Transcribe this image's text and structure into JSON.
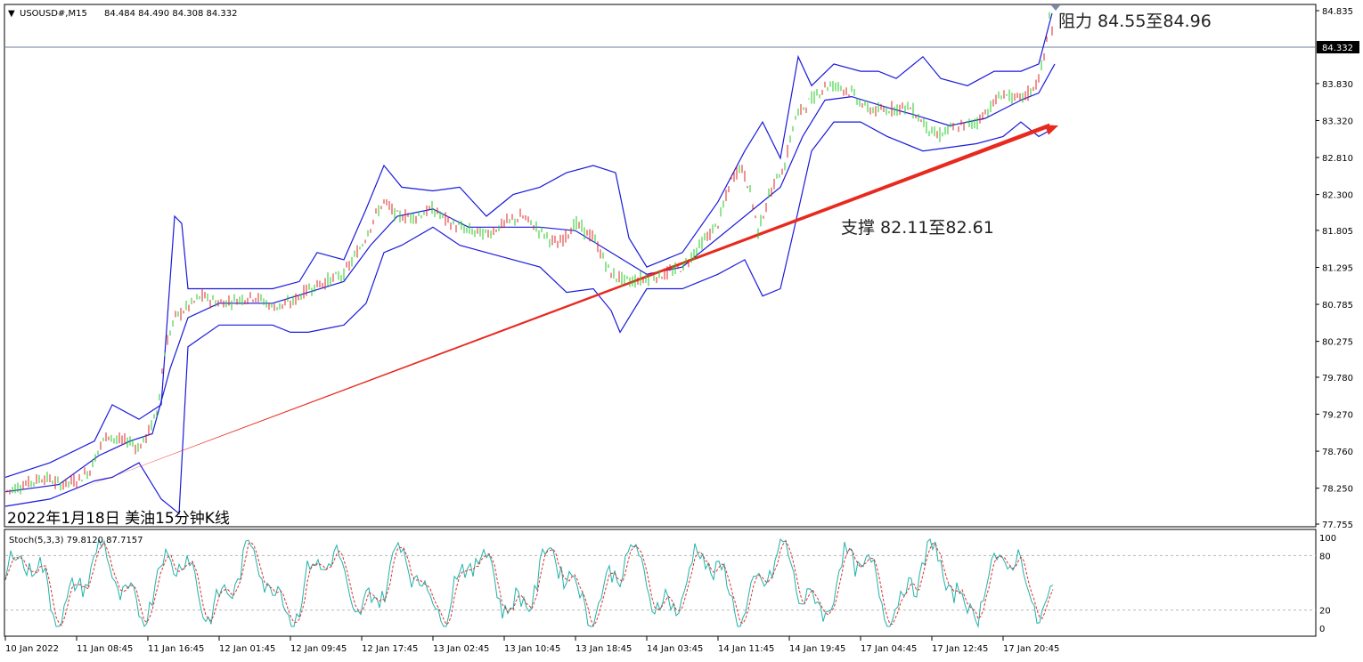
{
  "chart_data": {
    "type": "candlestick",
    "symbol_header": "USOUSD#,M15",
    "ohlc_readout": "84.484 84.490 84.308 84.332",
    "last_price_label": "84.332",
    "caption": "2022年1月18日 美油15分钟K线",
    "resistance_label": "阻力 84.55至84.96",
    "support_label": "支撑 82.11至82.61",
    "price_ticks": [
      "84.835",
      "84.332",
      "83.830",
      "83.320",
      "82.810",
      "82.300",
      "81.805",
      "81.295",
      "80.785",
      "80.275",
      "79.780",
      "79.270",
      "78.760",
      "78.250",
      "77.755"
    ],
    "x_ticks": [
      "10 Jan 2022",
      "11 Jan 08:45",
      "11 Jan 16:45",
      "12 Jan 01:45",
      "12 Jan 09:45",
      "12 Jan 17:45",
      "13 Jan 02:45",
      "13 Jan 10:45",
      "13 Jan 18:45",
      "14 Jan 03:45",
      "14 Jan 11:45",
      "14 Jan 19:45",
      "17 Jan 04:45",
      "17 Jan 12:45",
      "17 Jan 20:45"
    ],
    "ylim": [
      77.755,
      84.835
    ],
    "price_path": [
      [
        0,
        78.2
      ],
      [
        20,
        78.3
      ],
      [
        45,
        78.4
      ],
      [
        60,
        78.3
      ],
      [
        80,
        78.35
      ],
      [
        95,
        78.5
      ],
      [
        105,
        78.8
      ],
      [
        115,
        79.0
      ],
      [
        125,
        78.9
      ],
      [
        140,
        78.9
      ],
      [
        150,
        78.8
      ],
      [
        160,
        79.0
      ],
      [
        170,
        79.3
      ],
      [
        180,
        80.2
      ],
      [
        190,
        80.6
      ],
      [
        205,
        80.75
      ],
      [
        220,
        80.9
      ],
      [
        240,
        80.8
      ],
      [
        260,
        80.85
      ],
      [
        280,
        80.9
      ],
      [
        300,
        80.75
      ],
      [
        320,
        80.8
      ],
      [
        340,
        81.0
      ],
      [
        360,
        81.1
      ],
      [
        380,
        81.2
      ],
      [
        400,
        81.6
      ],
      [
        415,
        82.0
      ],
      [
        425,
        82.2
      ],
      [
        440,
        82.0
      ],
      [
        460,
        82.0
      ],
      [
        480,
        82.1
      ],
      [
        500,
        81.9
      ],
      [
        520,
        81.8
      ],
      [
        540,
        81.75
      ],
      [
        560,
        81.9
      ],
      [
        580,
        82.0
      ],
      [
        600,
        81.8
      ],
      [
        620,
        81.6
      ],
      [
        640,
        81.9
      ],
      [
        660,
        81.7
      ],
      [
        680,
        81.2
      ],
      [
        700,
        81.1
      ],
      [
        720,
        81.15
      ],
      [
        740,
        81.2
      ],
      [
        760,
        81.3
      ],
      [
        780,
        81.6
      ],
      [
        800,
        81.9
      ],
      [
        815,
        82.5
      ],
      [
        825,
        82.7
      ],
      [
        835,
        82.4
      ],
      [
        845,
        81.8
      ],
      [
        855,
        82.2
      ],
      [
        865,
        82.5
      ],
      [
        875,
        82.7
      ],
      [
        885,
        83.3
      ],
      [
        895,
        83.5
      ],
      [
        905,
        83.6
      ],
      [
        920,
        83.8
      ],
      [
        935,
        83.8
      ],
      [
        950,
        83.7
      ],
      [
        965,
        83.5
      ],
      [
        980,
        83.45
      ],
      [
        1000,
        83.5
      ],
      [
        1015,
        83.5
      ],
      [
        1030,
        83.3
      ],
      [
        1045,
        83.1
      ],
      [
        1060,
        83.2
      ],
      [
        1075,
        83.25
      ],
      [
        1090,
        83.3
      ],
      [
        1105,
        83.5
      ],
      [
        1120,
        83.7
      ],
      [
        1135,
        83.6
      ],
      [
        1150,
        83.7
      ],
      [
        1160,
        83.9
      ],
      [
        1168,
        84.3
      ],
      [
        1172,
        84.8
      ],
      [
        1176,
        84.4
      ]
    ],
    "bollinger_middle": [
      [
        0,
        78.2
      ],
      [
        60,
        78.3
      ],
      [
        105,
        78.7
      ],
      [
        140,
        78.9
      ],
      [
        165,
        79.0
      ],
      [
        185,
        79.9
      ],
      [
        205,
        80.6
      ],
      [
        240,
        80.8
      ],
      [
        300,
        80.8
      ],
      [
        340,
        80.95
      ],
      [
        380,
        81.1
      ],
      [
        410,
        81.6
      ],
      [
        440,
        82.0
      ],
      [
        480,
        82.1
      ],
      [
        520,
        81.85
      ],
      [
        560,
        81.85
      ],
      [
        600,
        81.85
      ],
      [
        640,
        81.8
      ],
      [
        680,
        81.5
      ],
      [
        720,
        81.2
      ],
      [
        760,
        81.3
      ],
      [
        800,
        81.7
      ],
      [
        840,
        82.1
      ],
      [
        870,
        82.4
      ],
      [
        895,
        83.1
      ],
      [
        920,
        83.6
      ],
      [
        950,
        83.65
      ],
      [
        990,
        83.5
      ],
      [
        1020,
        83.4
      ],
      [
        1060,
        83.25
      ],
      [
        1100,
        83.35
      ],
      [
        1140,
        83.6
      ],
      [
        1160,
        83.7
      ],
      [
        1178,
        84.1
      ]
    ],
    "bollinger_upper": [
      [
        0,
        78.4
      ],
      [
        50,
        78.6
      ],
      [
        100,
        78.9
      ],
      [
        120,
        79.4
      ],
      [
        150,
        79.2
      ],
      [
        175,
        79.4
      ],
      [
        190,
        82.0
      ],
      [
        198,
        81.9
      ],
      [
        205,
        81.0
      ],
      [
        240,
        81.0
      ],
      [
        300,
        81.0
      ],
      [
        330,
        81.1
      ],
      [
        350,
        81.5
      ],
      [
        380,
        81.4
      ],
      [
        405,
        82.1
      ],
      [
        425,
        82.7
      ],
      [
        445,
        82.4
      ],
      [
        480,
        82.35
      ],
      [
        510,
        82.4
      ],
      [
        540,
        82.0
      ],
      [
        570,
        82.3
      ],
      [
        600,
        82.4
      ],
      [
        630,
        82.6
      ],
      [
        660,
        82.7
      ],
      [
        685,
        82.6
      ],
      [
        700,
        81.7
      ],
      [
        720,
        81.3
      ],
      [
        760,
        81.5
      ],
      [
        800,
        82.2
      ],
      [
        830,
        82.9
      ],
      [
        850,
        83.3
      ],
      [
        870,
        82.8
      ],
      [
        890,
        84.2
      ],
      [
        905,
        83.8
      ],
      [
        930,
        84.1
      ],
      [
        960,
        84.0
      ],
      [
        980,
        84.0
      ],
      [
        1000,
        83.9
      ],
      [
        1030,
        84.2
      ],
      [
        1050,
        83.9
      ],
      [
        1080,
        83.8
      ],
      [
        1110,
        84.0
      ],
      [
        1140,
        84.0
      ],
      [
        1160,
        84.1
      ],
      [
        1175,
        84.8
      ]
    ],
    "bollinger_lower": [
      [
        0,
        78.0
      ],
      [
        50,
        78.1
      ],
      [
        100,
        78.35
      ],
      [
        120,
        78.4
      ],
      [
        150,
        78.6
      ],
      [
        175,
        78.1
      ],
      [
        195,
        77.9
      ],
      [
        205,
        80.2
      ],
      [
        240,
        80.5
      ],
      [
        280,
        80.5
      ],
      [
        300,
        80.5
      ],
      [
        320,
        80.4
      ],
      [
        340,
        80.4
      ],
      [
        380,
        80.5
      ],
      [
        405,
        80.8
      ],
      [
        425,
        81.5
      ],
      [
        445,
        81.6
      ],
      [
        480,
        81.85
      ],
      [
        510,
        81.6
      ],
      [
        540,
        81.5
      ],
      [
        570,
        81.4
      ],
      [
        600,
        81.3
      ],
      [
        630,
        80.95
      ],
      [
        660,
        81.0
      ],
      [
        680,
        80.7
      ],
      [
        690,
        80.4
      ],
      [
        720,
        81.0
      ],
      [
        760,
        81.0
      ],
      [
        800,
        81.2
      ],
      [
        830,
        81.4
      ],
      [
        850,
        80.9
      ],
      [
        870,
        81.0
      ],
      [
        885,
        81.8
      ],
      [
        905,
        82.9
      ],
      [
        930,
        83.3
      ],
      [
        960,
        83.3
      ],
      [
        990,
        83.1
      ],
      [
        1030,
        82.9
      ],
      [
        1060,
        82.95
      ],
      [
        1090,
        83.0
      ],
      [
        1120,
        83.1
      ],
      [
        1140,
        83.3
      ],
      [
        1160,
        83.1
      ],
      [
        1175,
        83.2
      ]
    ],
    "support_trendline": [
      [
        75,
        78.2
      ],
      [
        1182,
        83.25
      ]
    ],
    "stoch_label": "Stoch(5,3,3) 79.8120 87.7157",
    "stoch_levels": [
      80,
      20
    ],
    "stoch_ticks": [
      "100",
      "80",
      "20",
      "0"
    ],
    "stoch_ylim": [
      0,
      100
    ],
    "colors": {
      "bollinger": "#1a1adc",
      "trendline": "#e8291e",
      "candle_up": "#e02424",
      "candle_down": "#22cc22",
      "stoch_main": "#20b2aa",
      "stoch_signal": "#e03030",
      "axis": "#000000"
    }
  }
}
